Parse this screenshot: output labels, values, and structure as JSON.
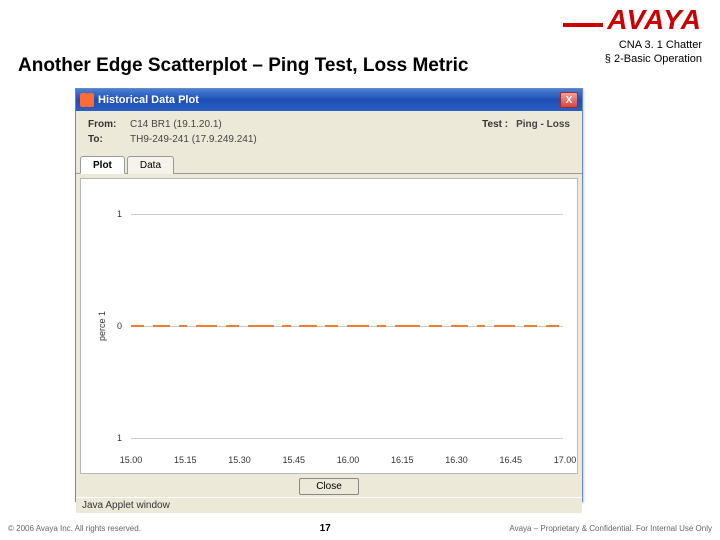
{
  "brand": {
    "name": "AVAYA",
    "color": "#c00"
  },
  "section": {
    "line1": "CNA 3. 1 Chatter",
    "line2": "§ 2-Basic Operation"
  },
  "title": "Another Edge Scatterplot – Ping Test, Loss Metric",
  "window": {
    "title": "Historical Data Plot",
    "from_label": "From:",
    "from_val": "C14 BR1 (19.1.20.1)",
    "to_label": "To:",
    "to_val": "TH9-249-241 (17.9.249.241)",
    "test_label": "Test :",
    "test_val": "Ping - Loss",
    "tabs": [
      "Plot",
      "Data"
    ],
    "active_tab": 0,
    "close_btn": "Close",
    "status": "Java Applet window"
  },
  "chart": {
    "type": "scatter",
    "y_label": "perce 1",
    "y_ticks": [
      {
        "v": 1,
        "pos": 12
      },
      {
        "v": 0,
        "pos": 50
      },
      {
        "v": 1,
        "pos": 88
      }
    ],
    "x_ticks": [
      "15.00",
      "15.15",
      "15.30",
      "15.45",
      "16.00",
      "16.15",
      "16.30",
      "16.45",
      "17.00"
    ],
    "data_color": "#f47c2e",
    "background": "#ffffff",
    "segments": [
      {
        "l": 0,
        "w": 3
      },
      {
        "l": 5,
        "w": 4
      },
      {
        "l": 11,
        "w": 2
      },
      {
        "l": 15,
        "w": 5
      },
      {
        "l": 22,
        "w": 3
      },
      {
        "l": 27,
        "w": 6
      },
      {
        "l": 35,
        "w": 2
      },
      {
        "l": 39,
        "w": 4
      },
      {
        "l": 45,
        "w": 3
      },
      {
        "l": 50,
        "w": 5
      },
      {
        "l": 57,
        "w": 2
      },
      {
        "l": 61,
        "w": 6
      },
      {
        "l": 69,
        "w": 3
      },
      {
        "l": 74,
        "w": 4
      },
      {
        "l": 80,
        "w": 2
      },
      {
        "l": 84,
        "w": 5
      },
      {
        "l": 91,
        "w": 3
      },
      {
        "l": 96,
        "w": 3
      }
    ]
  },
  "footer": {
    "copyright": "© 2006 Avaya Inc. All rights reserved.",
    "page": "17",
    "right": "Avaya – Proprietary & Confidential. For Internal Use Only"
  }
}
